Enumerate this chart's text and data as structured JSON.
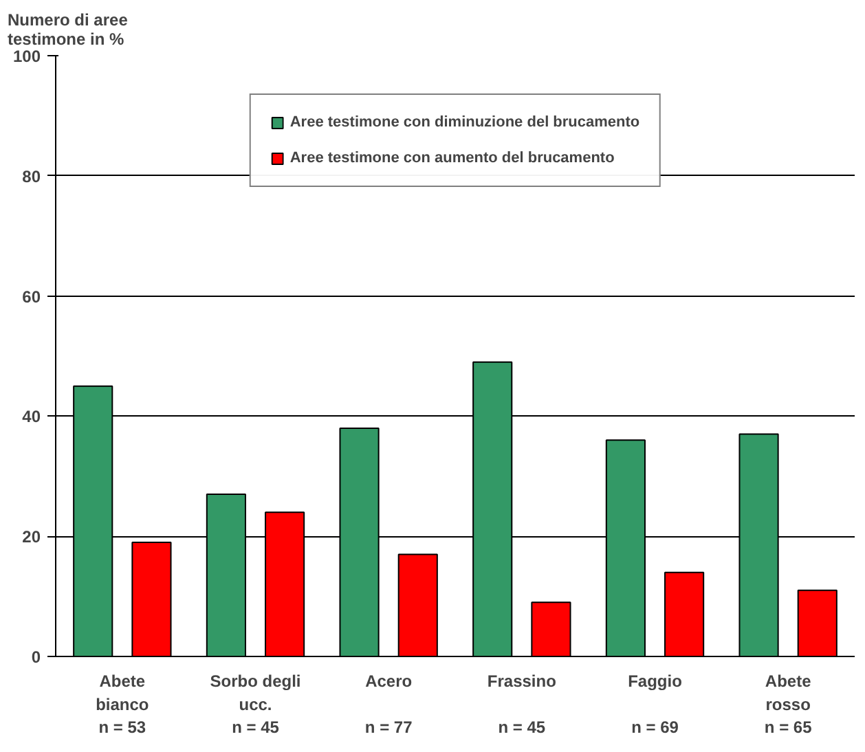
{
  "chart_data": {
    "type": "bar",
    "title": "Numero di aree\ntestimone in %",
    "categories": [
      "Abete\nbianco\nn = 53",
      "Sorbo degli\nucc.\nn = 45",
      "Acero\n\nn = 77",
      "Frassino\n\nn = 45",
      "Faggio\n\nn = 69",
      "Abete\nrosso\nn = 65"
    ],
    "series": [
      {
        "name": "Aree testimone con diminuzione del brucamento",
        "color": "#339966",
        "values": [
          45,
          27,
          38,
          49,
          36,
          37
        ]
      },
      {
        "name": "Aree testimone con aumento del brucamento",
        "color": "#ff0000",
        "values": [
          19,
          24,
          17,
          9,
          14,
          11
        ]
      }
    ],
    "ylim": [
      0,
      100
    ],
    "yticks": [
      0,
      20,
      40,
      60,
      80,
      100
    ],
    "grid": "y",
    "legend": "top"
  }
}
